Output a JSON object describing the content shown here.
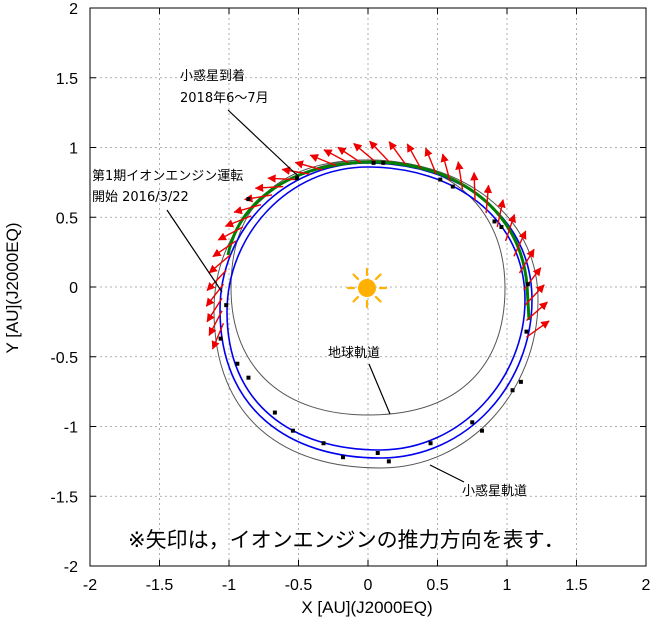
{
  "chart_data": {
    "type": "scatter",
    "xlabel": "X [AU](J2000EQ)",
    "ylabel": "Y [AU](J2000EQ)",
    "xlim": [
      -2,
      2
    ],
    "ylim": [
      -2,
      2
    ],
    "xticks": [
      "-2",
      "-1.5",
      "-1",
      "-0.5",
      "0",
      "0.5",
      "1",
      "1.5",
      "2"
    ],
    "yticks": [
      "2",
      "1.5",
      "1",
      "0.5",
      "0",
      "-0.5",
      "-1",
      "-1.5",
      "-2"
    ],
    "grid": true,
    "colors": {
      "earth_orbit": "#555555",
      "asteroid_orbit": "#555555",
      "spacecraft_orbit": "#0000ee",
      "ion_engine_arc": "#008000",
      "thrust_arrows": "#ee0000",
      "sun": "#ffb000"
    },
    "sun": {
      "x": 0,
      "y": 0,
      "icon": "sun-icon"
    },
    "annotations": {
      "arrival_line1": "小惑星到着",
      "arrival_line2": "2018年6～7月",
      "engine_start_line1": "第1期イオンエンジン運転",
      "engine_start_line2": "開始 2016/3/22",
      "earth_orbit_label": "地球軌道",
      "asteroid_orbit_label": "小惑星軌道"
    },
    "note": "※矢印は，イオンエンジンの推力方向を表す．",
    "spacecraft_markers": [
      [
        0.04,
        0.89
      ],
      [
        0.11,
        0.89
      ],
      [
        0.52,
        0.77
      ],
      [
        0.61,
        0.72
      ],
      [
        0.91,
        0.47
      ],
      [
        0.96,
        0.43
      ],
      [
        1.15,
        0.02
      ],
      [
        1.14,
        -0.32
      ],
      [
        1.1,
        -0.68
      ],
      [
        1.04,
        -0.74
      ],
      [
        0.82,
        -1.03
      ],
      [
        0.75,
        -0.97
      ],
      [
        0.45,
        -1.12
      ],
      [
        0.15,
        -1.25
      ],
      [
        0.07,
        -1.19
      ],
      [
        -0.18,
        -1.22
      ],
      [
        -0.32,
        -1.12
      ],
      [
        -0.54,
        -1.03
      ],
      [
        -0.67,
        -0.9
      ],
      [
        -0.86,
        -0.65
      ],
      [
        -0.94,
        -0.55
      ],
      [
        -1.02,
        -0.13
      ],
      [
        -1.06,
        -0.37
      ],
      [
        -0.51,
        0.78
      ],
      [
        -0.86,
        0.63
      ]
    ],
    "thrust_arrows": [
      [
        -0.05,
        0.89
      ],
      [
        0.05,
        0.9
      ],
      [
        0.15,
        0.9
      ],
      [
        0.27,
        0.88
      ],
      [
        0.38,
        0.85
      ],
      [
        0.49,
        0.81
      ],
      [
        0.59,
        0.76
      ],
      [
        0.68,
        0.7
      ],
      [
        0.77,
        0.62
      ],
      [
        0.85,
        0.53
      ],
      [
        0.93,
        0.43
      ],
      [
        0.99,
        0.33
      ],
      [
        1.05,
        0.22
      ],
      [
        1.09,
        0.1
      ],
      [
        1.12,
        -0.02
      ],
      [
        1.13,
        -0.13
      ],
      [
        1.14,
        -0.24
      ],
      [
        1.14,
        -0.36
      ],
      [
        -0.14,
        0.89
      ],
      [
        -0.23,
        0.87
      ],
      [
        -0.33,
        0.84
      ],
      [
        -0.42,
        0.81
      ],
      [
        -0.52,
        0.77
      ],
      [
        -0.61,
        0.72
      ],
      [
        -0.69,
        0.66
      ],
      [
        -0.77,
        0.59
      ],
      [
        -0.84,
        0.51
      ],
      [
        -0.9,
        0.43
      ],
      [
        -0.95,
        0.33
      ],
      [
        -0.99,
        0.23
      ],
      [
        -1.02,
        0.12
      ],
      [
        -1.04,
        0.02
      ],
      [
        -1.05,
        -0.08
      ],
      [
        -1.05,
        -0.17
      ],
      [
        -1.04,
        -0.26
      ]
    ]
  }
}
